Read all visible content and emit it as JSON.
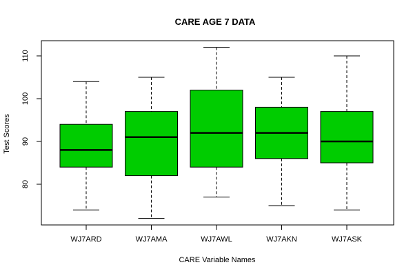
{
  "chart_data": {
    "type": "boxplot",
    "title": "CARE AGE 7 DATA",
    "xlabel": "CARE Variable Names",
    "ylabel": "Test Scores",
    "ylim": [
      70,
      113
    ],
    "yticks": [
      80,
      90,
      100,
      110
    ],
    "grid": false,
    "legend": "none",
    "fill_color": "#00cc00",
    "categories": [
      "WJ7ARD",
      "WJ7AMA",
      "WJ7AWL",
      "WJ7AKN",
      "WJ7ASK"
    ],
    "boxes": [
      {
        "category": "WJ7ARD",
        "whisker_low": 74,
        "q1": 84,
        "median": 88,
        "q3": 94,
        "whisker_high": 104
      },
      {
        "category": "WJ7AMA",
        "whisker_low": 72,
        "q1": 82,
        "median": 91,
        "q3": 97,
        "whisker_high": 105
      },
      {
        "category": "WJ7AWL",
        "whisker_low": 77,
        "q1": 84,
        "median": 92,
        "q3": 102,
        "whisker_high": 112
      },
      {
        "category": "WJ7AKN",
        "whisker_low": 75,
        "q1": 86,
        "median": 92,
        "q3": 98,
        "whisker_high": 105
      },
      {
        "category": "WJ7ASK",
        "whisker_low": 74,
        "q1": 85,
        "median": 90,
        "q3": 97,
        "whisker_high": 110
      }
    ]
  }
}
